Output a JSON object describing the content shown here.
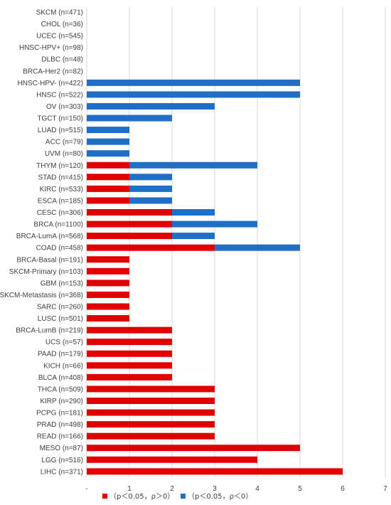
{
  "chart_data": {
    "type": "bar",
    "orientation": "horizontal",
    "stacked": true,
    "title": "",
    "xlabel": "",
    "ylabel": "",
    "xlim": [
      0,
      7
    ],
    "x_ticks": [
      "-",
      "1",
      "2",
      "3",
      "4",
      "5",
      "6",
      "7"
    ],
    "grid": true,
    "legend_position": "bottom",
    "categories": [
      "SKCM (n=471)",
      "CHOL (n=36)",
      "UCEC (n=545)",
      "HNSC-HPV+ (n=98)",
      "DLBC (n=48)",
      "BRCA-Her2 (n=82)",
      "HNSC-HPV- (n=422)",
      "HNSC (n=522)",
      "OV (n=303)",
      "TGCT (n=150)",
      "LUAD (n=515)",
      "ACC (n=79)",
      "UVM (n=80)",
      "THYM (n=120)",
      "STAD (n=415)",
      "KIRC (n=533)",
      "ESCA (n=185)",
      "CESC (n=306)",
      "BRCA (n=1100)",
      "BRCA-LumA (n=568)",
      "COAD (n=458)",
      "BRCA-Basal (n=191)",
      "SKCM-Primary (n=103)",
      "GBM (n=153)",
      "SKCM-Metastasis (n=368)",
      "SARC (n=260)",
      "LUSC (n=501)",
      "BRCA-LumB (n=219)",
      "UCS (n=57)",
      "PAAD (n=179)",
      "KICH (n=66)",
      "BLCA (n=408)",
      "THCA (n=509)",
      "KIRP (n=290)",
      "PCPG (n=181)",
      "PRAD (n=498)",
      "READ (n=166)",
      "MESO (n=87)",
      "LGG (n=516)",
      "LIHC (n=371)"
    ],
    "series": [
      {
        "name": "（p＜0.05，ρ＞0）",
        "color": "#e00000",
        "values": [
          0,
          0,
          0,
          0,
          0,
          0,
          0,
          0,
          0,
          0,
          0,
          0,
          0,
          1,
          1,
          1,
          1,
          2,
          2,
          2,
          3,
          1,
          1,
          1,
          1,
          1,
          1,
          2,
          2,
          2,
          2,
          2,
          3,
          3,
          3,
          3,
          3,
          5,
          4,
          6
        ]
      },
      {
        "name": "（p＜0.05，ρ＜0）",
        "color": "#1f6fc6",
        "values": [
          0,
          0,
          0,
          0,
          0,
          0,
          5,
          5,
          3,
          2,
          1,
          1,
          1,
          3,
          1,
          1,
          1,
          1,
          2,
          1,
          2,
          0,
          0,
          0,
          0,
          0,
          0,
          0,
          0,
          0,
          0,
          0,
          0,
          0,
          0,
          0,
          0,
          0,
          0,
          0
        ]
      }
    ]
  }
}
